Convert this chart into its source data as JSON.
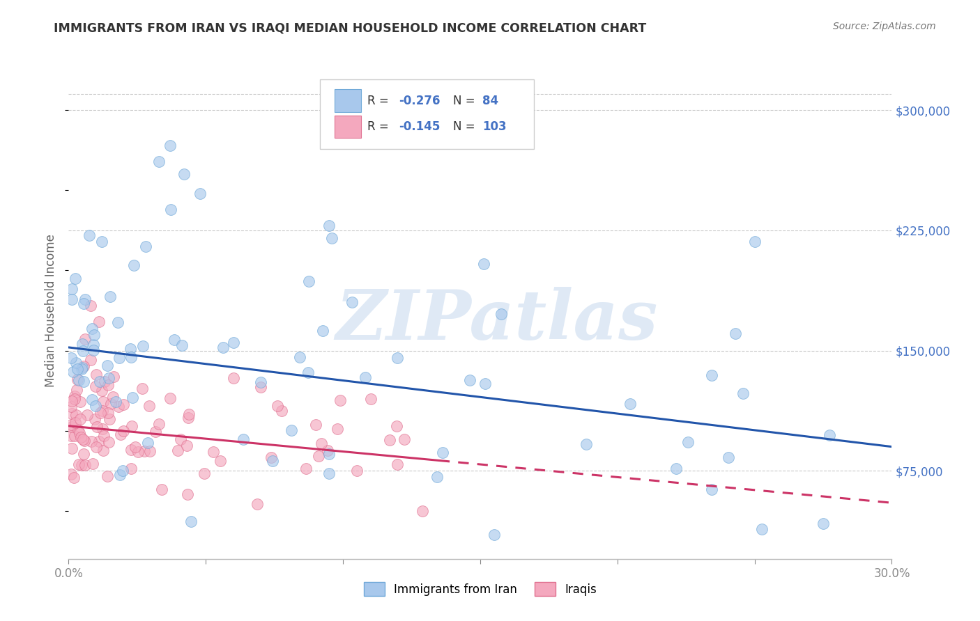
{
  "title": "IMMIGRANTS FROM IRAN VS IRAQI MEDIAN HOUSEHOLD INCOME CORRELATION CHART",
  "source": "Source: ZipAtlas.com",
  "ylabel": "Median Household Income",
  "xlim": [
    0.0,
    0.3
  ],
  "ylim": [
    20000,
    330000
  ],
  "xticks": [
    0.0,
    0.05,
    0.1,
    0.15,
    0.2,
    0.25,
    0.3
  ],
  "xticklabels": [
    "0.0%",
    "",
    "",
    "",
    "",
    "",
    "30.0%"
  ],
  "yticks": [
    75000,
    150000,
    225000,
    300000
  ],
  "yticklabels": [
    "$75,000",
    "$150,000",
    "$225,000",
    "$300,000"
  ],
  "iran_color": "#A8C8EC",
  "iran_edge_color": "#6FA8D8",
  "iraqi_color": "#F4A8BE",
  "iraqi_edge_color": "#E07090",
  "iran_R": -0.276,
  "iran_N": 84,
  "iraqi_R": -0.145,
  "iraqi_N": 103,
  "iran_line_color": "#2255AA",
  "iraqi_line_color": "#CC3366",
  "watermark": "ZIPatlas",
  "legend_label_iran": "Immigrants from Iran",
  "legend_label_iraqi": "Iraqis",
  "background_color": "#FFFFFF",
  "grid_color": "#BBBBBB",
  "title_color": "#333333",
  "right_tick_color": "#4472C4",
  "iran_line_y0": 152000,
  "iran_line_y1": 90000,
  "iraqi_line_y0": 103000,
  "iraqi_line_y1": 55000
}
